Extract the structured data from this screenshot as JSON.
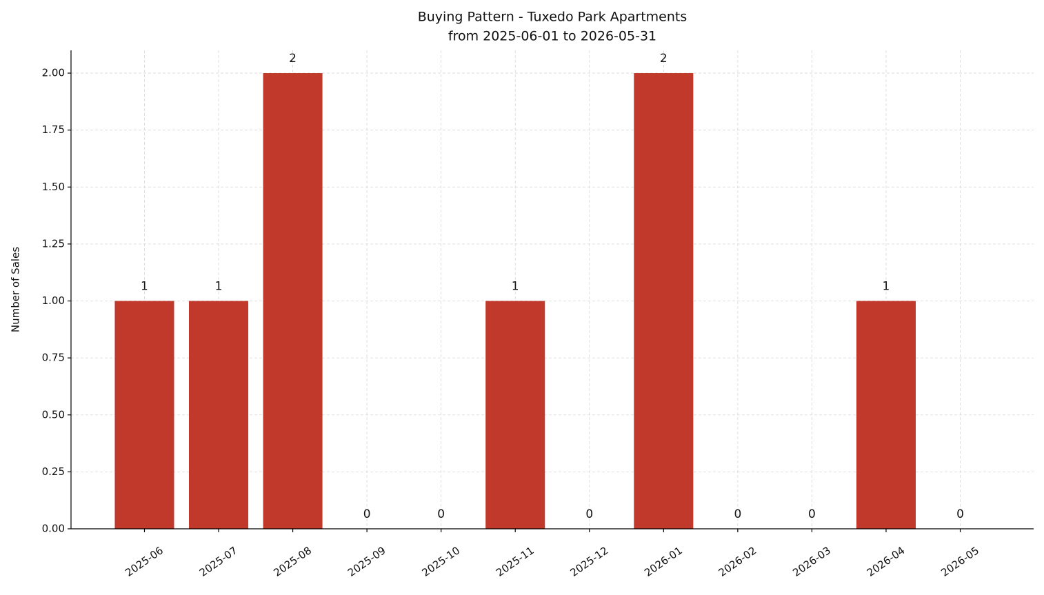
{
  "chart_data": {
    "type": "bar",
    "title": "Buying Pattern - Tuxedo Park Apartments",
    "subtitle": "from 2025-06-01 to 2026-05-31",
    "y_label": "Number of Sales",
    "categories": [
      "2025-06",
      "2025-07",
      "2025-08",
      "2025-09",
      "2025-10",
      "2025-11",
      "2025-12",
      "2026-01",
      "2026-02",
      "2026-03",
      "2026-04",
      "2026-05"
    ],
    "values": [
      1,
      1,
      2,
      0,
      0,
      1,
      0,
      2,
      0,
      0,
      1,
      0
    ],
    "color": "#c0392b",
    "ylim": [
      0,
      2.1
    ],
    "yticks": [
      {
        "value": 0,
        "label": "0.00"
      },
      {
        "value": 0.25,
        "label": "0.25"
      },
      {
        "value": 0.5,
        "label": "0.50"
      },
      {
        "value": 0.75,
        "label": "0.75"
      },
      {
        "value": 1,
        "label": "1.00"
      },
      {
        "value": 1.25,
        "label": "1.25"
      },
      {
        "value": 1.5,
        "label": "1.50"
      },
      {
        "value": 1.75,
        "label": "1.75"
      },
      {
        "value": 2,
        "label": "2.00"
      }
    ],
    "grid": true
  }
}
